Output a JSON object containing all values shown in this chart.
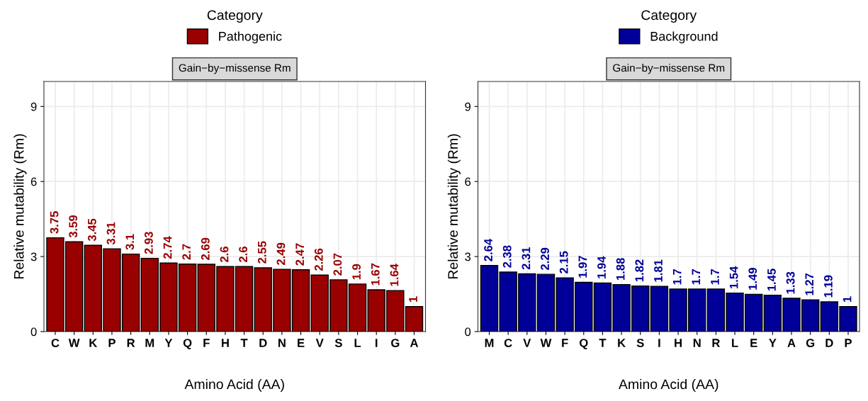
{
  "chart_data": [
    {
      "type": "bar",
      "title": "Gain−by−missense Rm",
      "xlabel": "Amino Acid (AA)",
      "ylabel": "Relative mutability (Rm)",
      "legend_title": "Category",
      "legend": "top",
      "grid": true,
      "data_labels": true,
      "ylim": [
        0,
        10
      ],
      "yticks": [
        0,
        3,
        6,
        9
      ],
      "categories": [
        "C",
        "W",
        "K",
        "P",
        "R",
        "M",
        "Y",
        "Q",
        "F",
        "H",
        "T",
        "D",
        "N",
        "E",
        "V",
        "S",
        "L",
        "I",
        "G",
        "A"
      ],
      "series": [
        {
          "name": "Pathogenic",
          "color": "#990000",
          "values": [
            3.75,
            3.59,
            3.45,
            3.31,
            3.1,
            2.93,
            2.74,
            2.7,
            2.69,
            2.6,
            2.6,
            2.55,
            2.49,
            2.47,
            2.26,
            2.07,
            1.9,
            1.67,
            1.64,
            1
          ]
        }
      ]
    },
    {
      "type": "bar",
      "title": "Gain−by−missense Rm",
      "xlabel": "Amino Acid (AA)",
      "ylabel": "Relative mutability (Rm)",
      "legend_title": "Category",
      "legend": "top",
      "grid": true,
      "data_labels": true,
      "ylim": [
        0,
        10
      ],
      "yticks": [
        0,
        3,
        6,
        9
      ],
      "categories": [
        "M",
        "C",
        "V",
        "W",
        "F",
        "Q",
        "T",
        "K",
        "S",
        "I",
        "H",
        "N",
        "R",
        "L",
        "E",
        "Y",
        "A",
        "G",
        "D",
        "P"
      ],
      "series": [
        {
          "name": "Background",
          "color": "#000099",
          "values": [
            2.64,
            2.38,
            2.31,
            2.29,
            2.15,
            1.97,
            1.94,
            1.88,
            1.82,
            1.81,
            1.7,
            1.7,
            1.7,
            1.54,
            1.49,
            1.45,
            1.33,
            1.27,
            1.19,
            1
          ]
        }
      ]
    }
  ]
}
